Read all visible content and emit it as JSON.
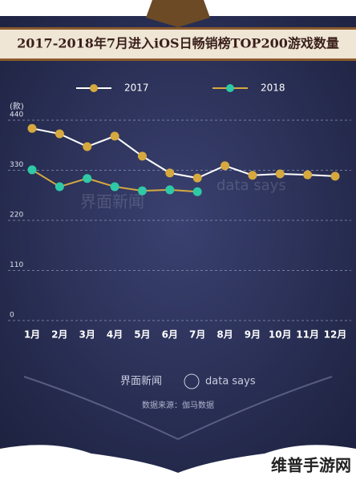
{
  "chart_data": {
    "type": "line",
    "title": "2017-2018年7月进入iOS日畅销榜TOP200游戏数量",
    "y_label": "(款)",
    "categories": [
      "1月",
      "2月",
      "3月",
      "4月",
      "5月",
      "6月",
      "7月",
      "8月",
      "9月",
      "10月",
      "11月",
      "12月"
    ],
    "series": [
      {
        "name": "2017",
        "color": "#d6a93f",
        "line_color": "#ffffff",
        "values": [
          422,
          410,
          382,
          405,
          361,
          324,
          313,
          340,
          319,
          322,
          320,
          317
        ]
      },
      {
        "name": "2018",
        "color": "#2ec9a7",
        "line_color": "#d6a93f",
        "values": [
          331,
          294,
          312,
          294,
          285,
          287,
          283,
          null,
          null,
          null,
          null,
          null
        ]
      }
    ],
    "ylim": [
      0,
      440
    ],
    "yticks": [
      0,
      110,
      220,
      330,
      440
    ],
    "grid": true,
    "watermarks": [
      "界面新闻",
      "data says"
    ],
    "footer": {
      "logo": "界面新闻",
      "brand": "data says",
      "source": "数据来源：伽马数据",
      "site": "维普手游网"
    }
  }
}
